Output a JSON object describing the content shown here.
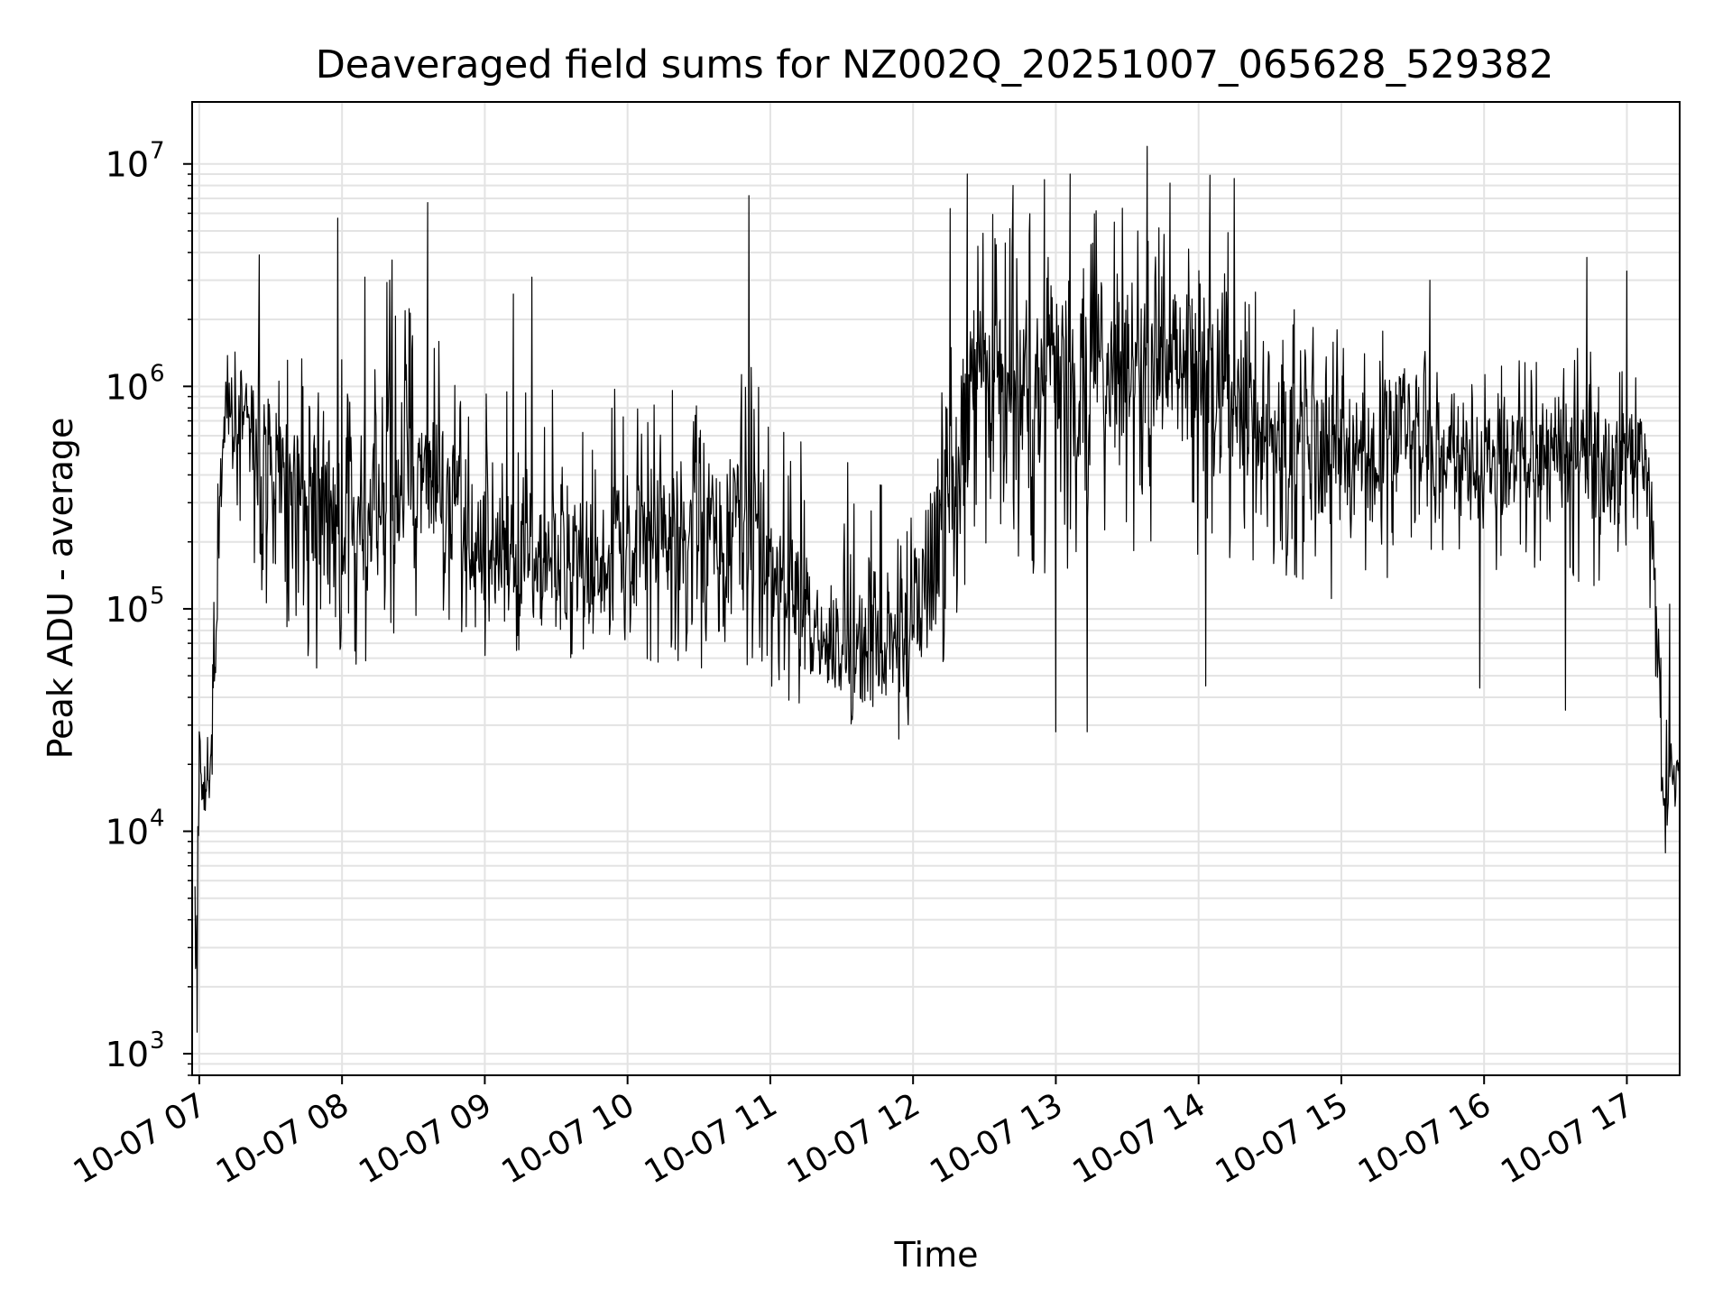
{
  "chart_data": {
    "type": "line",
    "title": "Deaveraged field sums for NZ002Q_20251007_065628_529382",
    "xlabel": "Time",
    "ylabel": "Peak ADU - average",
    "yscale": "log",
    "xlim": [
      6.95,
      17.37
    ],
    "ylim": [
      800,
      19000000
    ],
    "grid": true,
    "line_color": "#000000",
    "x_ticks": [
      {
        "value": 7,
        "label": "10-07 07"
      },
      {
        "value": 8,
        "label": "10-07 08"
      },
      {
        "value": 9,
        "label": "10-07 09"
      },
      {
        "value": 10,
        "label": "10-07 10"
      },
      {
        "value": 11,
        "label": "10-07 11"
      },
      {
        "value": 12,
        "label": "10-07 12"
      },
      {
        "value": 13,
        "label": "10-07 13"
      },
      {
        "value": 14,
        "label": "10-07 14"
      },
      {
        "value": 15,
        "label": "10-07 15"
      },
      {
        "value": 16,
        "label": "10-07 16"
      },
      {
        "value": 17,
        "label": "10-07 17"
      }
    ],
    "y_ticks": [
      {
        "value": 1000,
        "base": "10",
        "exp": "3"
      },
      {
        "value": 10000,
        "base": "10",
        "exp": "4"
      },
      {
        "value": 100000,
        "base": "10",
        "exp": "5"
      },
      {
        "value": 1000000,
        "base": "10",
        "exp": "6"
      },
      {
        "value": 10000000,
        "base": "10",
        "exp": "7"
      }
    ],
    "series": [
      {
        "name": "field sums",
        "x_start": 6.97,
        "x_end": 17.37,
        "envelope": [
          {
            "x": 6.97,
            "low": 1250,
            "high": 8000,
            "median": 4000
          },
          {
            "x": 7.0,
            "low": 8000,
            "high": 28000,
            "median": 15000
          },
          {
            "x": 7.07,
            "low": 9000,
            "high": 30000,
            "median": 16000
          },
          {
            "x": 7.12,
            "low": 30000,
            "high": 350000,
            "median": 120000
          },
          {
            "x": 7.18,
            "low": 200000,
            "high": 1500000,
            "median": 700000
          },
          {
            "x": 7.3,
            "low": 150000,
            "high": 1700000,
            "median": 800000
          },
          {
            "x": 7.5,
            "low": 90000,
            "high": 1500000,
            "median": 500000
          },
          {
            "x": 7.75,
            "low": 50000,
            "high": 1400000,
            "median": 300000
          },
          {
            "x": 8.0,
            "low": 50000,
            "high": 1500000,
            "median": 250000
          },
          {
            "x": 8.3,
            "low": 60000,
            "high": 3500000,
            "median": 350000
          },
          {
            "x": 8.6,
            "low": 100000,
            "high": 1900000,
            "median": 400000
          },
          {
            "x": 9.0,
            "low": 60000,
            "high": 1100000,
            "median": 200000
          },
          {
            "x": 9.5,
            "low": 60000,
            "high": 1000000,
            "median": 150000
          },
          {
            "x": 10.0,
            "low": 60000,
            "high": 1100000,
            "median": 200000
          },
          {
            "x": 10.5,
            "low": 50000,
            "high": 1000000,
            "median": 200000
          },
          {
            "x": 10.95,
            "low": 50000,
            "high": 1300000,
            "median": 250000
          },
          {
            "x": 11.2,
            "low": 32000,
            "high": 600000,
            "median": 100000
          },
          {
            "x": 11.5,
            "low": 30000,
            "high": 500000,
            "median": 80000
          },
          {
            "x": 11.75,
            "low": 28000,
            "high": 400000,
            "median": 60000
          },
          {
            "x": 12.0,
            "low": 30000,
            "high": 450000,
            "median": 90000
          },
          {
            "x": 12.2,
            "low": 50000,
            "high": 1000000,
            "median": 300000
          },
          {
            "x": 12.45,
            "low": 200000,
            "high": 6000000,
            "median": 1000000
          },
          {
            "x": 12.8,
            "low": 150000,
            "high": 6000000,
            "median": 1200000
          },
          {
            "x": 13.2,
            "low": 100000,
            "high": 6000000,
            "median": 1000000
          },
          {
            "x": 13.6,
            "low": 200000,
            "high": 7000000,
            "median": 1500000
          },
          {
            "x": 14.1,
            "low": 150000,
            "high": 6000000,
            "median": 1100000
          },
          {
            "x": 14.5,
            "low": 150000,
            "high": 3000000,
            "median": 700000
          },
          {
            "x": 15.0,
            "low": 100000,
            "high": 1800000,
            "median": 450000
          },
          {
            "x": 15.5,
            "low": 150000,
            "high": 2000000,
            "median": 700000
          },
          {
            "x": 16.0,
            "low": 150000,
            "high": 1500000,
            "median": 450000
          },
          {
            "x": 16.5,
            "low": 150000,
            "high": 1500000,
            "median": 550000
          },
          {
            "x": 16.9,
            "low": 100000,
            "high": 1500000,
            "median": 400000
          },
          {
            "x": 17.1,
            "low": 200000,
            "high": 1400000,
            "median": 600000
          },
          {
            "x": 17.18,
            "low": 80000,
            "high": 600000,
            "median": 300000
          },
          {
            "x": 17.25,
            "low": 9000,
            "high": 40000,
            "median": 15000
          },
          {
            "x": 17.37,
            "low": 13000,
            "high": 25000,
            "median": 19000
          }
        ],
        "spikes": [
          {
            "x": 6.985,
            "y": 1250
          },
          {
            "x": 7.0,
            "y": 28000
          },
          {
            "x": 7.42,
            "y": 3900000
          },
          {
            "x": 7.97,
            "y": 5700000
          },
          {
            "x": 8.16,
            "y": 3100000
          },
          {
            "x": 8.35,
            "y": 3700000
          },
          {
            "x": 8.6,
            "y": 6700000
          },
          {
            "x": 9.2,
            "y": 2600000
          },
          {
            "x": 9.33,
            "y": 3100000
          },
          {
            "x": 10.85,
            "y": 7200000
          },
          {
            "x": 12.26,
            "y": 6300000
          },
          {
            "x": 12.38,
            "y": 9000000
          },
          {
            "x": 12.7,
            "y": 8000000
          },
          {
            "x": 12.92,
            "y": 8500000
          },
          {
            "x": 13.1,
            "y": 9000000
          },
          {
            "x": 13.64,
            "y": 12000000
          },
          {
            "x": 13.8,
            "y": 8200000
          },
          {
            "x": 14.08,
            "y": 8900000
          },
          {
            "x": 14.25,
            "y": 8600000
          },
          {
            "x": 15.62,
            "y": 3000000
          },
          {
            "x": 16.72,
            "y": 3800000
          },
          {
            "x": 17.0,
            "y": 3300000
          },
          {
            "x": 17.3,
            "y": 105000
          },
          {
            "x": 13.0,
            "y": 28000
          },
          {
            "x": 13.22,
            "y": 28000
          },
          {
            "x": 14.05,
            "y": 45000
          },
          {
            "x": 16.57,
            "y": 35000
          },
          {
            "x": 15.97,
            "y": 44000
          },
          {
            "x": 11.9,
            "y": 26000
          },
          {
            "x": 17.27,
            "y": 8000
          }
        ]
      }
    ]
  }
}
